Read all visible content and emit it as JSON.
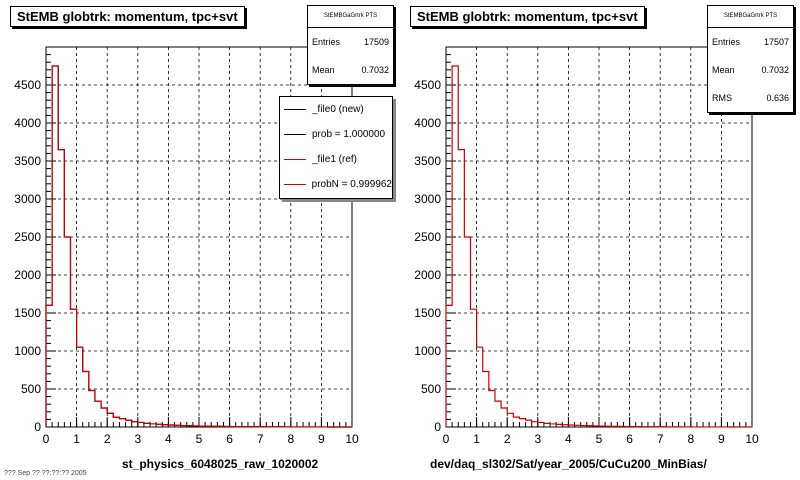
{
  "footer_text": "??? Sep ?? ??:??:?? 2005",
  "chart_data": [
    {
      "type": "bar",
      "title": "StEMB globtrk: momentum, tpc+svt",
      "xlabel": "st_physics_6048025_raw_1020002",
      "ylabel": "",
      "xlim": [
        0,
        10
      ],
      "ylim": [
        0,
        5000
      ],
      "xticks": [
        "0",
        "1",
        "2",
        "3",
        "4",
        "5",
        "6",
        "7",
        "8",
        "9",
        "10"
      ],
      "yticks": [
        "0",
        "500",
        "1000",
        "1500",
        "2000",
        "2500",
        "3000",
        "3500",
        "4000",
        "4500"
      ],
      "grid": true,
      "bin_width": 0.2,
      "stats": {
        "name": "StEMBGaGrtrk PTS",
        "rows": [
          {
            "label": "Entries",
            "value": "17509"
          },
          {
            "label": "Mean",
            "value": "0.7032"
          }
        ]
      },
      "legend": {
        "placement": "top-right",
        "entries": [
          {
            "label": "_file0 (new)",
            "color": "#000000"
          },
          {
            "label": "prob = 1.000000",
            "color": "#000000"
          },
          {
            "label": "_file1 (ref)",
            "color": "#cc0000"
          },
          {
            "label": "probN = 0.999962",
            "color": "#cc0000"
          }
        ]
      },
      "series": [
        {
          "name": "_file0 (new)",
          "color": "#000000",
          "values": [
            1600,
            4750,
            3650,
            2500,
            1550,
            1050,
            730,
            480,
            340,
            250,
            180,
            130,
            110,
            90,
            70,
            60,
            48,
            40,
            35,
            30,
            26,
            22,
            19,
            16,
            14,
            12,
            10,
            9,
            8,
            7,
            6,
            5,
            4,
            4,
            3,
            3,
            2,
            2,
            2,
            1,
            1,
            1,
            1,
            1,
            1,
            1,
            0,
            0,
            0,
            0
          ]
        },
        {
          "name": "_file1 (ref)",
          "color": "#cc0000",
          "values": [
            1600,
            4750,
            3650,
            2500,
            1550,
            1050,
            730,
            480,
            340,
            250,
            180,
            130,
            110,
            90,
            70,
            60,
            48,
            40,
            35,
            30,
            26,
            22,
            19,
            16,
            14,
            12,
            10,
            9,
            8,
            7,
            6,
            5,
            4,
            4,
            3,
            3,
            2,
            2,
            2,
            1,
            1,
            1,
            1,
            1,
            1,
            1,
            0,
            0,
            0,
            0
          ]
        }
      ]
    },
    {
      "type": "bar",
      "title": "StEMB globtrk: momentum, tpc+svt",
      "xlabel": "dev/daq_sl302/Sat/year_2005/CuCu200_MinBias/",
      "ylabel": "",
      "xlim": [
        0,
        10
      ],
      "ylim": [
        0,
        5000
      ],
      "xticks": [
        "0",
        "1",
        "2",
        "3",
        "4",
        "5",
        "6",
        "7",
        "8",
        "9",
        "10"
      ],
      "yticks": [
        "0",
        "500",
        "1000",
        "1500",
        "2000",
        "2500",
        "3000",
        "3500",
        "4000",
        "4500"
      ],
      "grid": true,
      "bin_width": 0.2,
      "stats": {
        "name": "StEMBGaGrtrk PTS",
        "rows": [
          {
            "label": "Entries",
            "value": "17507"
          },
          {
            "label": "Mean",
            "value": "0.7032"
          },
          {
            "label": "RMS",
            "value": "0.636"
          }
        ]
      },
      "series": [
        {
          "name": "",
          "color": "#cc0000",
          "values": [
            1600,
            4750,
            3650,
            2500,
            1550,
            1050,
            730,
            480,
            340,
            250,
            180,
            130,
            110,
            90,
            70,
            60,
            48,
            40,
            35,
            30,
            26,
            22,
            19,
            16,
            14,
            12,
            10,
            9,
            8,
            7,
            6,
            5,
            4,
            4,
            3,
            3,
            2,
            2,
            2,
            1,
            1,
            1,
            1,
            1,
            1,
            1,
            0,
            0,
            0,
            0
          ]
        }
      ]
    }
  ]
}
